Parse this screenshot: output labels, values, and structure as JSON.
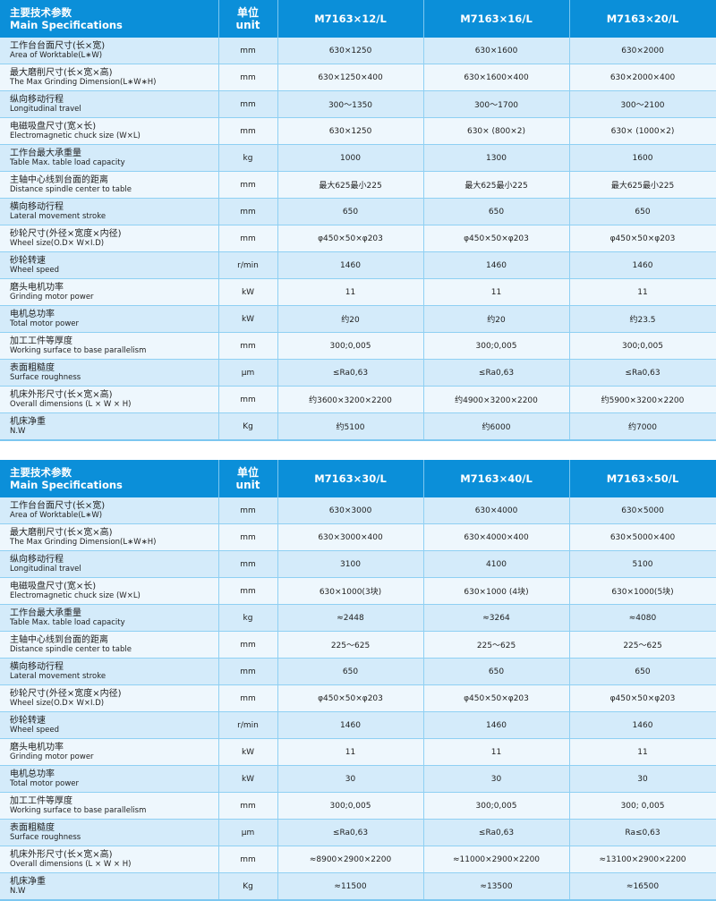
{
  "header": {
    "label_cn": "主要技术参数",
    "label_en": "Main Specifications",
    "unit_cn": "单位",
    "unit_en": "unit"
  },
  "row_labels": [
    {
      "cn": "工作台台面尺寸(长×宽)",
      "en": "Area of Worktable(L∗W)"
    },
    {
      "cn": "最大磨削尺寸(长×宽×高)",
      "en": "The Max Grinding Dimension(L∗W∗H)"
    },
    {
      "cn": "纵向移动行程",
      "en": "Longitudinal travel"
    },
    {
      "cn": "电磁吸盘尺寸(宽×长)",
      "en": "Electromagnetic chuck size (W×L)"
    },
    {
      "cn": "工作台最大承重量",
      "en": "Table Max. table load capacity"
    },
    {
      "cn": "主轴中心线到台面的距离",
      "en": "Distance spindle center to table"
    },
    {
      "cn": "横向移动行程",
      "en": "Lateral movement stroke"
    },
    {
      "cn": "砂轮尺寸(外径×宽度×内径)",
      "en": "Wheel size(O.D× W×I.D)"
    },
    {
      "cn": "砂轮转速",
      "en": "Wheel speed"
    },
    {
      "cn": "磨头电机功率",
      "en": "Grinding motor power"
    },
    {
      "cn": "电机总功率",
      "en": "Total motor power"
    },
    {
      "cn": "加工工件等厚度",
      "en": "Working surface to  base parallelism"
    },
    {
      "cn": "表面粗糙度",
      "en": "Surface roughness"
    },
    {
      "cn": "机床外形尺寸(长×宽×高)",
      "en": "Overall dimensions (L × W × H)"
    },
    {
      "cn": "机床净重",
      "en": "N.W"
    }
  ],
  "units": [
    "mm",
    "mm",
    "mm",
    "mm",
    "kg",
    "mm",
    "mm",
    "mm",
    "r/min",
    "kW",
    "kW",
    "mm",
    "μm",
    "mm",
    "Kg"
  ],
  "tables": [
    {
      "models": [
        "M7163×12/L",
        "M7163×16/L",
        "M7163×20/L"
      ],
      "values": [
        [
          "630×1250",
          "630×1600",
          "630×2000"
        ],
        [
          "630×1250×400",
          "630×1600×400",
          "630×2000×400"
        ],
        [
          "300～1350",
          "300～1700",
          "300～2100"
        ],
        [
          "630×1250",
          "630× (800×2)",
          "630× (1000×2)"
        ],
        [
          "1000",
          "1300",
          "1600"
        ],
        [
          "最大625最小225",
          "最大625最小225",
          "最大625最小225"
        ],
        [
          "650",
          "650",
          "650"
        ],
        [
          "φ450×50×φ203",
          "φ450×50×φ203",
          "φ450×50×φ203"
        ],
        [
          "1460",
          "1460",
          "1460"
        ],
        [
          "11",
          "11",
          "11"
        ],
        [
          "约20",
          "约20",
          "约23.5"
        ],
        [
          "300;0,005",
          "300;0,005",
          "300;0,005"
        ],
        [
          "≤Ra0,63",
          "≤Ra0,63",
          "≤Ra0,63"
        ],
        [
          "约3600×3200×2200",
          "约4900×3200×2200",
          "约5900×3200×2200"
        ],
        [
          "约5100",
          "约6000",
          "约7000"
        ]
      ]
    },
    {
      "models": [
        "M7163×30/L",
        "M7163×40/L",
        "M7163×50/L"
      ],
      "values": [
        [
          "630×3000",
          "630×4000",
          "630×5000"
        ],
        [
          "630×3000×400",
          "630×4000×400",
          "630×5000×400"
        ],
        [
          "3100",
          "4100",
          "5100"
        ],
        [
          "630×1000(3块)",
          "630×1000 (4块)",
          "630×1000(5块)"
        ],
        [
          "≈2448",
          "≈3264",
          "≈4080"
        ],
        [
          "225～625",
          "225～625",
          "225～625"
        ],
        [
          "650",
          "650",
          "650"
        ],
        [
          "φ450×50×φ203",
          "φ450×50×φ203",
          "φ450×50×φ203"
        ],
        [
          "1460",
          "1460",
          "1460"
        ],
        [
          "11",
          "11",
          "11"
        ],
        [
          "30",
          "30",
          "30"
        ],
        [
          "300;0,005",
          "300;0,005",
          "300; 0,005"
        ],
        [
          "≤Ra0,63",
          "≤Ra0,63",
          "Ra≤0,63"
        ],
        [
          "≈8900×2900×2200",
          "≈11000×2900×2200",
          "≈13100×2900×2200"
        ],
        [
          "≈11500",
          "≈13500",
          "≈16500"
        ]
      ]
    }
  ],
  "colors": {
    "header": "#0b8fd9",
    "row_odd": "#d4ebfa",
    "row_even": "#eef7fd"
  }
}
